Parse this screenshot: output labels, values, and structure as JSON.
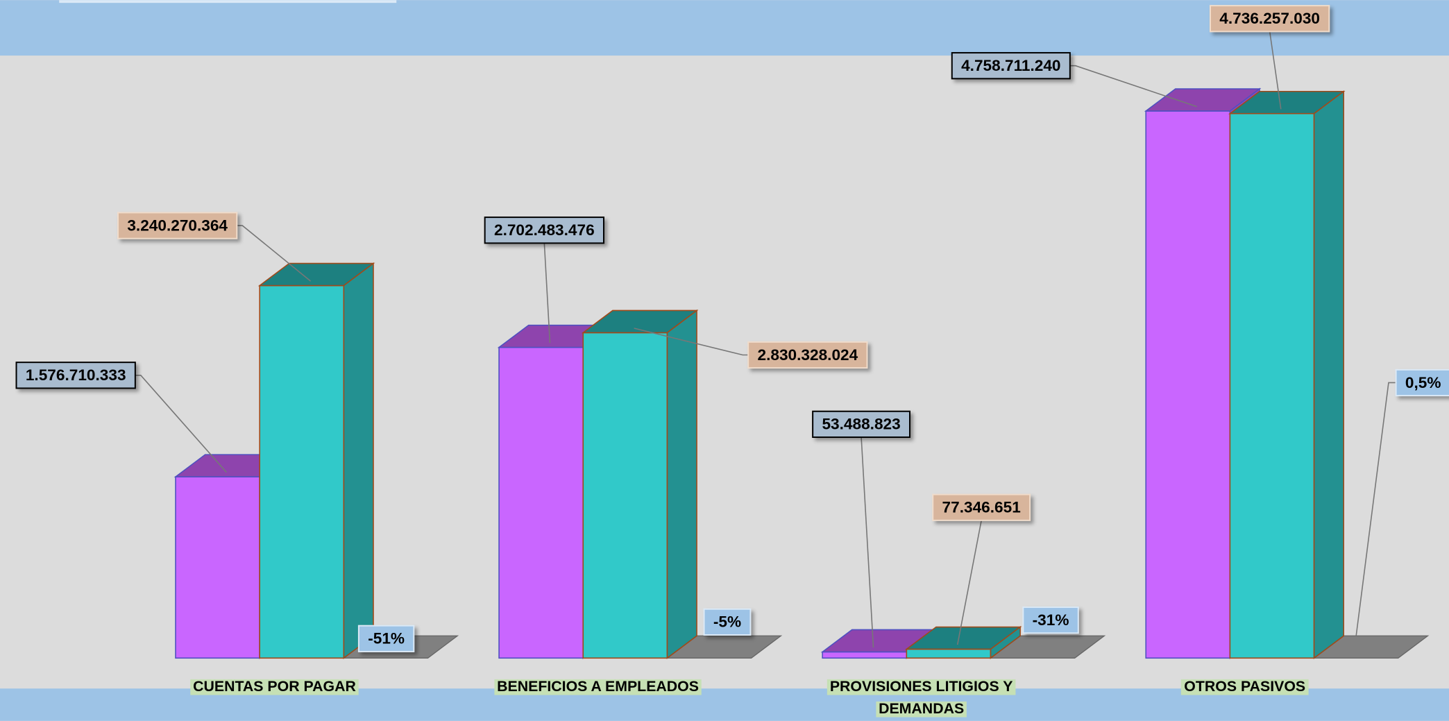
{
  "chart_data": {
    "type": "bar3d",
    "categories": [
      "CUENTAS POR PAGAR",
      "BENEFICIOS A EMPLEADOS",
      "PROVISIONES LITIGIOS Y DEMANDAS",
      "OTROS PASIVOS"
    ],
    "series": [
      {
        "color": "#c966ff",
        "values": [
          1576710333,
          2702483476,
          53488823,
          4758711240
        ],
        "value_labels": [
          "1.576.710.333",
          "2.702.483.476",
          "53.488.823",
          "4.758.711.240"
        ]
      },
      {
        "color": "#31c9c9",
        "values": [
          3240270364,
          2830328024,
          77346651,
          4736257030
        ],
        "value_labels": [
          "3.240.270.364",
          "2.830.328.024",
          "77.346.651",
          "4.736.257.030"
        ]
      }
    ],
    "changes": {
      "color": "#808080",
      "values": [
        -51,
        -5,
        -31,
        0.5
      ],
      "value_labels": [
        "-51%",
        "-5%",
        "-31%",
        "0,5%"
      ]
    },
    "ylim": [
      0,
      5000000000
    ]
  }
}
